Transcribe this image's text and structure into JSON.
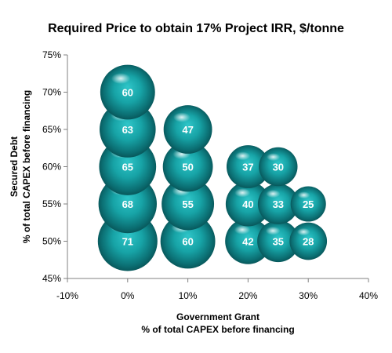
{
  "chart_data": {
    "type": "bubble",
    "title": "Required Price to obtain 17% Project IRR, $/tonne",
    "xlabel": [
      "Government Grant",
      "% of total CAPEX before financing"
    ],
    "ylabel": [
      "Secured Debt",
      "% of total CAPEX before financing"
    ],
    "xlim": [
      -10,
      40
    ],
    "ylim": [
      45,
      75
    ],
    "x_ticks": [
      "-10%",
      "0%",
      "10%",
      "20%",
      "30%",
      "40%"
    ],
    "y_ticks": [
      "45%",
      "50%",
      "55%",
      "60%",
      "65%",
      "70%",
      "75%"
    ],
    "grid": false,
    "legend": "none",
    "bubble_color": "#17a3a6",
    "points": [
      {
        "x": 0,
        "y": 70,
        "value": 60
      },
      {
        "x": 0,
        "y": 65,
        "value": 63
      },
      {
        "x": 0,
        "y": 60,
        "value": 65
      },
      {
        "x": 0,
        "y": 55,
        "value": 68
      },
      {
        "x": 0,
        "y": 50,
        "value": 71
      },
      {
        "x": 10,
        "y": 65,
        "value": 47
      },
      {
        "x": 10,
        "y": 60,
        "value": 50
      },
      {
        "x": 10,
        "y": 55,
        "value": 55
      },
      {
        "x": 10,
        "y": 50,
        "value": 60
      },
      {
        "x": 20,
        "y": 60,
        "value": 37
      },
      {
        "x": 20,
        "y": 55,
        "value": 40
      },
      {
        "x": 20,
        "y": 50,
        "value": 42
      },
      {
        "x": 25,
        "y": 60,
        "value": 30
      },
      {
        "x": 25,
        "y": 55,
        "value": 33
      },
      {
        "x": 25,
        "y": 50,
        "value": 35
      },
      {
        "x": 30,
        "y": 55,
        "value": 25
      },
      {
        "x": 30,
        "y": 50,
        "value": 28
      }
    ]
  }
}
